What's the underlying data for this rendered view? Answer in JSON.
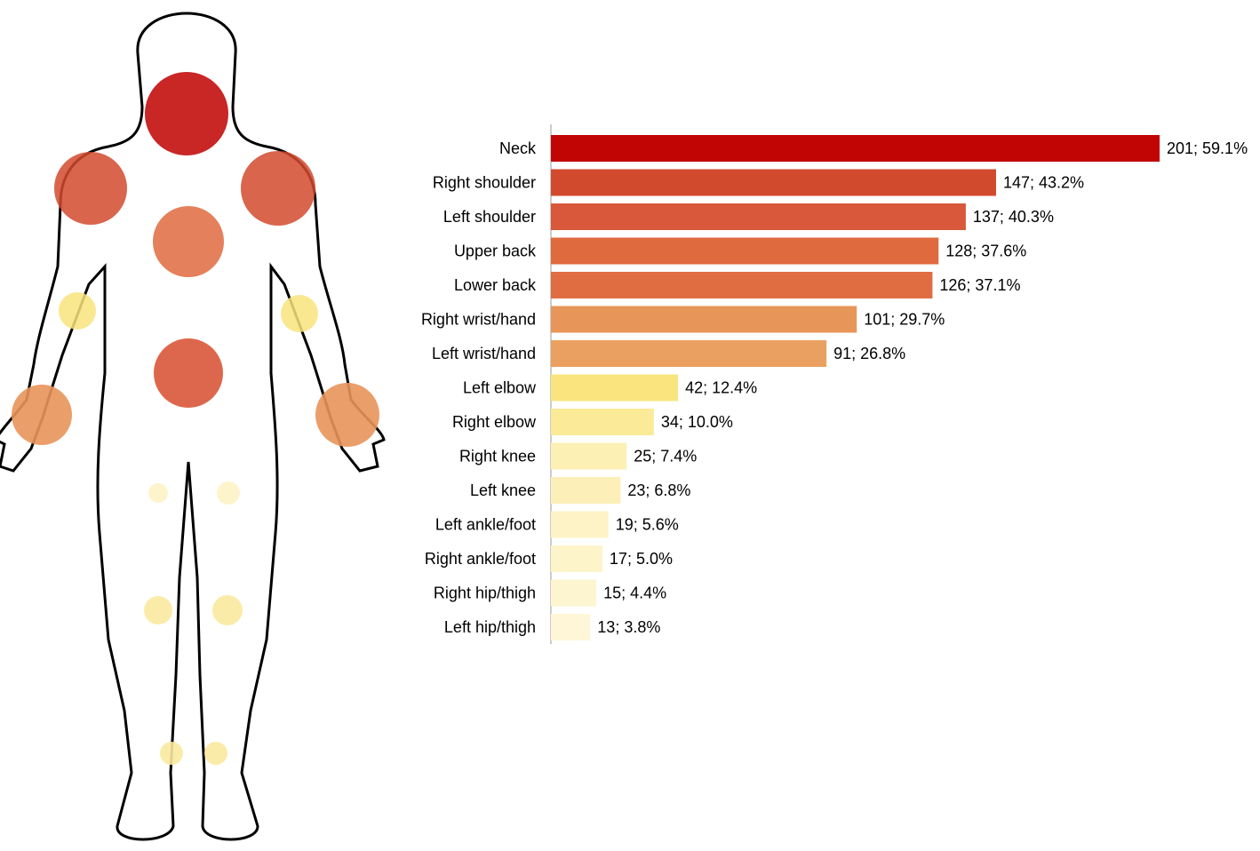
{
  "chart_data": {
    "type": "bar",
    "orientation": "horizontal",
    "categories": [
      "Neck",
      "Right shoulder",
      "Left shoulder",
      "Upper back",
      "Lower back",
      "Right wrist/hand",
      "Left wrist/hand",
      "Left elbow",
      "Right elbow",
      "Right knee",
      "Left knee",
      "Left ankle/foot",
      "Right ankle/foot",
      "Right hip/thigh",
      "Left hip/thigh"
    ],
    "values": [
      201,
      147,
      137,
      128,
      126,
      101,
      91,
      42,
      34,
      25,
      23,
      19,
      17,
      15,
      13
    ],
    "value_labels": [
      "201; 59.1%",
      "147; 43.2%",
      "137; 40.3%",
      "128; 37.6%",
      "126; 37.1%",
      "101; 29.7%",
      "91; 26.8%",
      "42; 12.4%",
      "34; 10.0%",
      "25; 7.4%",
      "23; 6.8%",
      "19; 5.6%",
      "17; 5.0%",
      "15; 4.4%",
      "13; 3.8%"
    ],
    "colors": [
      "#c10505",
      "#d24a2e",
      "#d9573a",
      "#df6a3e",
      "#e06c42",
      "#e8955a",
      "#eaa060",
      "#f9e47e",
      "#fbea98",
      "#fcf0b4",
      "#fcf0b8",
      "#fdf3c6",
      "#fdf4ca",
      "#fdf5cf",
      "#fef6d6"
    ]
  }
}
